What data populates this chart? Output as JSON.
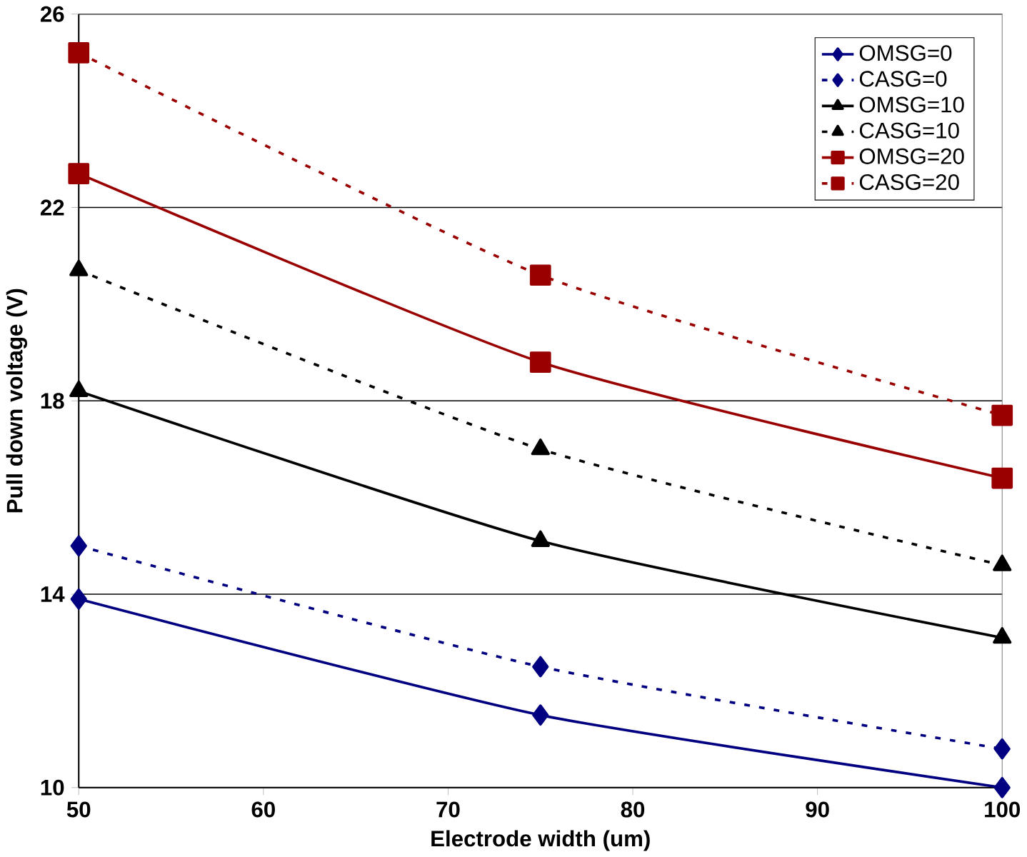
{
  "chart_data": {
    "type": "line",
    "xlabel": "Electrode width (um)",
    "ylabel": "Pull down voltage (V)",
    "x": [
      50,
      75,
      100
    ],
    "series": [
      {
        "name": "OMSG=0",
        "color": "#000080",
        "marker": "diamond",
        "line_style": "solid",
        "values": [
          13.9,
          11.5,
          10.0
        ]
      },
      {
        "name": "CASG=0",
        "color": "#000080",
        "marker": "diamond",
        "line_style": "dashed",
        "values": [
          15.0,
          12.5,
          10.8
        ]
      },
      {
        "name": "OMSG=10",
        "color": "#000000",
        "marker": "triangle",
        "line_style": "solid",
        "values": [
          18.2,
          15.1,
          13.1
        ]
      },
      {
        "name": "CASG=10",
        "color": "#000000",
        "marker": "triangle",
        "line_style": "dashed",
        "values": [
          20.7,
          17.0,
          14.6
        ]
      },
      {
        "name": "OMSG=20",
        "color": "#990000",
        "marker": "square",
        "line_style": "solid",
        "values": [
          22.7,
          18.8,
          16.4
        ]
      },
      {
        "name": "CASG=20",
        "color": "#990000",
        "marker": "square",
        "line_style": "dashed",
        "values": [
          25.2,
          20.6,
          17.7
        ]
      }
    ],
    "xlim": [
      50,
      100
    ],
    "xticks": [
      50,
      60,
      70,
      80,
      90,
      100
    ],
    "ylim": [
      10,
      26
    ],
    "yticks": [
      10,
      14,
      18,
      22,
      26
    ],
    "grid": "y",
    "legend": "top right"
  }
}
